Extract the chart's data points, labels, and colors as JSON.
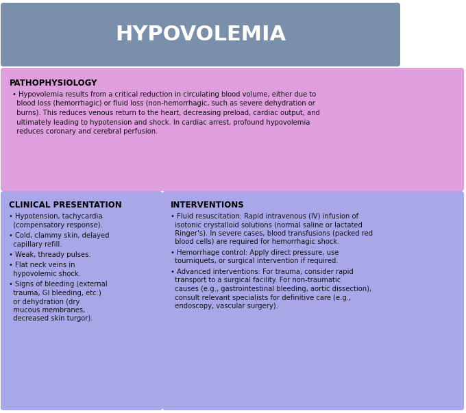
{
  "title": "HYPOVOLEMIA",
  "title_bg_color": "#7a8faa",
  "title_text_color": "#ffffff",
  "bg_color": "#ffffff",
  "pathophys_bg": "#df9fdf",
  "bottom_bg": "#a8a8e8",
  "pathophys_header": "PATHOPHYSIOLOGY",
  "pathophys_text": "Hypovolemia results from a critical reduction in circulating blood volume, either due to\nblood loss (hemorrhagic) or fluid loss (non-hemorrhagic, such as severe dehydration or\nburns). This reduces venous return to the heart, decreasing preload, cardiac output, and\nultimately leading to hypotension and shock. In cardiac arrest, profound hypovolemia\nreduces coronary and cerebral perfusion.",
  "clinical_header": "CLINICAL PRESENTATION",
  "clinical_bullets": [
    "Hypotension, tachycardia\n(compensatory response).",
    "Cold, clammy skin, delayed\ncapillary refill.",
    "Weak, thready pulses.",
    "Flat neck veins in\nhypovolemic shock.",
    "Signs of bleeding (external\ntrauma, GI bleeding, etc.)\nor dehydration (dry\nmucous membranes,\ndecreased skin turgor)."
  ],
  "interventions_header": "INTERVENTIONS",
  "interventions_bullets": [
    "Fluid resuscitation: Rapid intravenous (IV) infusion of\nisotonic crystalloid solutions (normal saline or lactated\nRinger's). In severe cases, blood transfusions (packed red\nblood cells) are required for hemorrhagic shock.",
    "Hemorrhage control: Apply direct pressure, use\ntourniquets, or surgical intervention if required.",
    "Advanced interventions: For trauma, consider rapid\ntransport to a surgical facility. For non-traumatic\ncauses (e.g., gastrointestinal bleeding, aortic dissection),\nconsult relevant specialists for definitive care (e.g.,\nendoscopy, vascular surgery)."
  ],
  "header_text_color": "#000000",
  "body_text_color": "#111111",
  "title_fontsize": 22,
  "header_fontsize": 8.5,
  "body_fontsize": 7.2,
  "fig_width": 6.8,
  "fig_height": 6.03,
  "dpi": 100
}
